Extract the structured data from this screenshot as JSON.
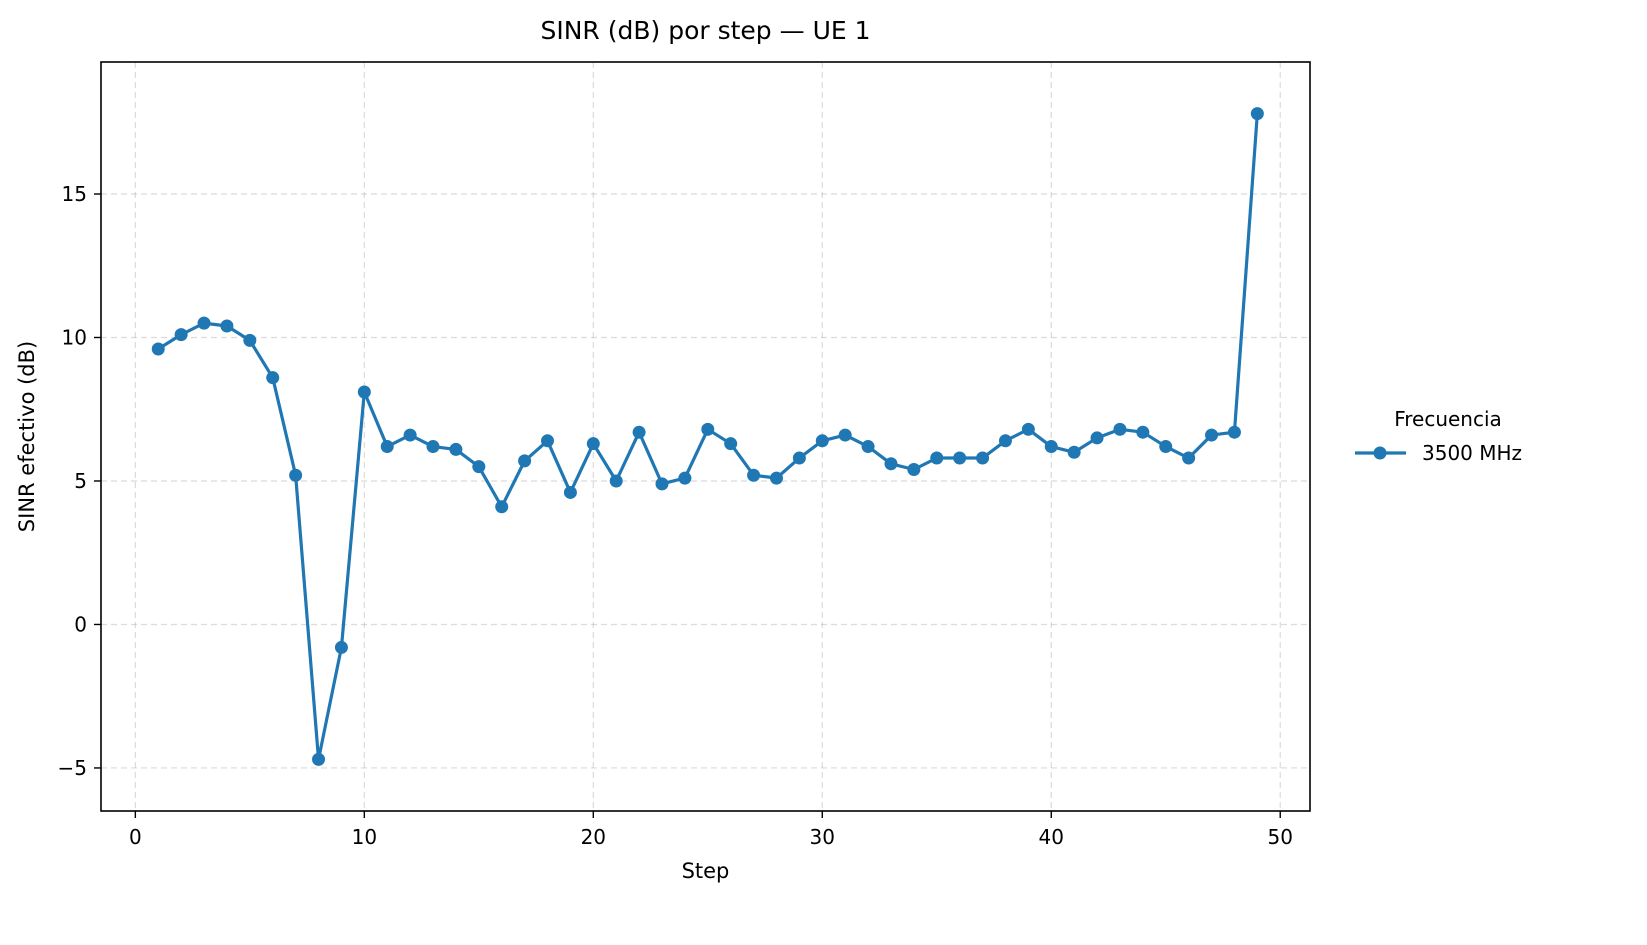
{
  "chart_data": {
    "type": "line",
    "title": "SINR (dB) por step — UE 1",
    "xlabel": "Step",
    "ylabel": "SINR efectivo (dB)",
    "xlim": [
      -1.5,
      51.3
    ],
    "ylim": [
      -6.5,
      19.6
    ],
    "xticks": [
      0,
      10,
      20,
      30,
      40,
      50
    ],
    "yticks": [
      -5,
      0,
      5,
      10,
      15
    ],
    "ytick_labels": [
      "−5",
      "0",
      "5",
      "10",
      "15"
    ],
    "grid": true,
    "legend": {
      "title": "Frecuencia",
      "placement": "outside-right"
    },
    "color": "#1f77b4",
    "x": [
      1,
      2,
      3,
      4,
      5,
      6,
      7,
      8,
      9,
      10,
      11,
      12,
      13,
      14,
      15,
      16,
      17,
      18,
      19,
      20,
      21,
      22,
      23,
      24,
      25,
      26,
      27,
      28,
      29,
      30,
      31,
      32,
      33,
      34,
      35,
      36,
      37,
      38,
      39,
      40,
      41,
      42,
      43,
      44,
      45,
      46,
      47,
      48,
      49
    ],
    "series": [
      {
        "name": "3500 MHz",
        "values": [
          9.6,
          10.1,
          10.5,
          10.4,
          9.9,
          8.6,
          5.2,
          -4.7,
          -0.8,
          8.1,
          6.2,
          6.6,
          6.2,
          6.1,
          5.5,
          4.1,
          5.7,
          6.4,
          4.6,
          6.3,
          5.0,
          6.7,
          4.9,
          5.1,
          6.8,
          6.3,
          5.2,
          5.1,
          5.8,
          6.4,
          6.6,
          6.2,
          5.6,
          5.4,
          5.8,
          5.8,
          5.8,
          6.4,
          6.8,
          6.2,
          6.0,
          6.5,
          6.8,
          6.7,
          6.2,
          5.8,
          6.6,
          6.7,
          17.8
        ]
      }
    ]
  }
}
